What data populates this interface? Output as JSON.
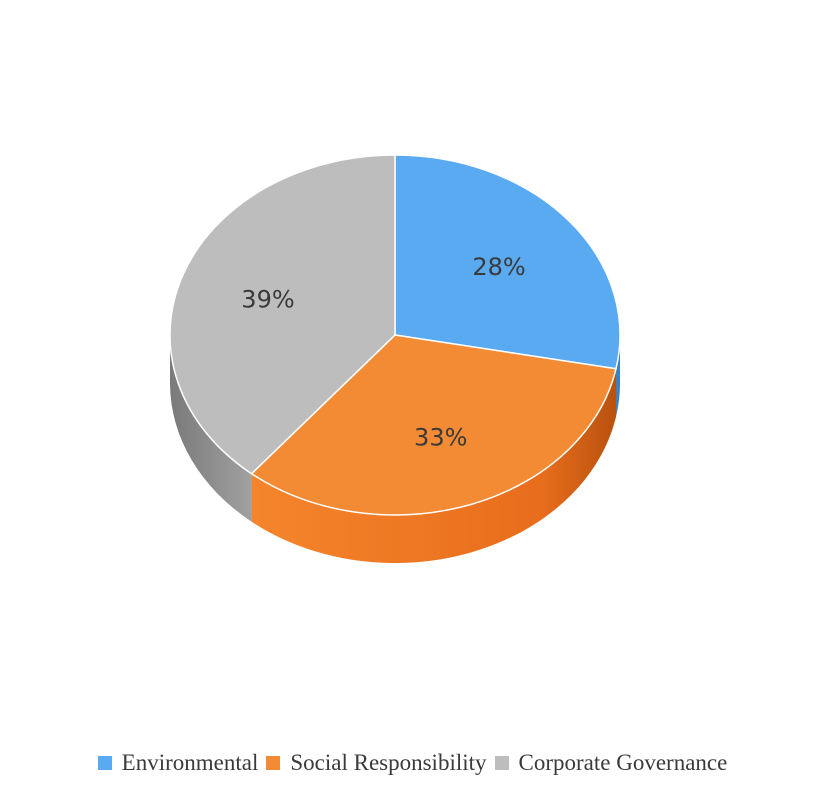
{
  "chart_data": {
    "type": "pie",
    "categories": [
      "Environmental",
      "Social Responsibility",
      "Corporate Governance"
    ],
    "values": [
      28,
      33,
      39
    ],
    "labels": [
      "28%",
      "33%",
      "39%"
    ],
    "colors": [
      "#5aaaf2",
      "#f38b35",
      "#bdbdbd"
    ],
    "side_colors": [
      "#3a80c4",
      "#e0681a",
      "#8c8c8c"
    ],
    "style": "3d",
    "legend_position": "bottom"
  }
}
